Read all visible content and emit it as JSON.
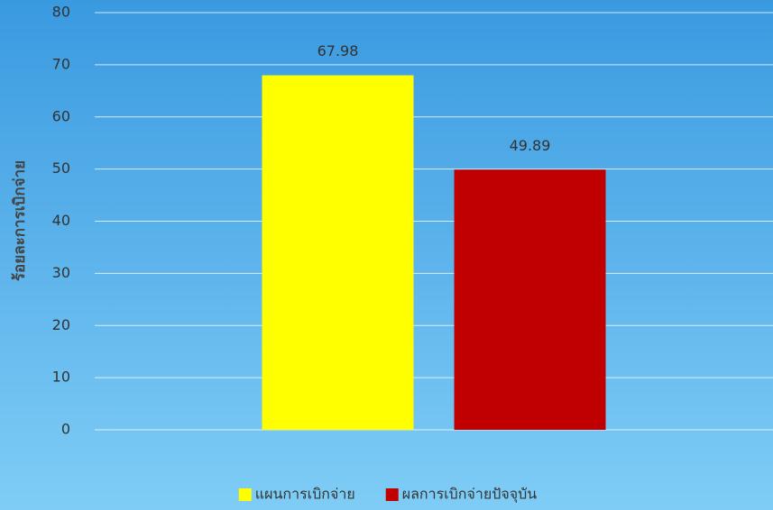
{
  "chart_data": {
    "type": "bar",
    "y_label": "ร้อยละการเบิกจ่าย",
    "categories": [
      null
    ],
    "series": [
      {
        "name": "แผนการเบิกจ่าย",
        "color": "#ffff00",
        "values": [
          67.98
        ]
      },
      {
        "name": "ผลการเบิกจ่ายปัจจุบัน",
        "color": "#c00000",
        "values": [
          49.89
        ]
      }
    ],
    "ylim": [
      0,
      80
    ],
    "yticks": [
      0,
      10,
      20,
      30,
      40,
      50,
      60,
      70,
      80
    ],
    "grid": true,
    "legend": "bottom"
  }
}
